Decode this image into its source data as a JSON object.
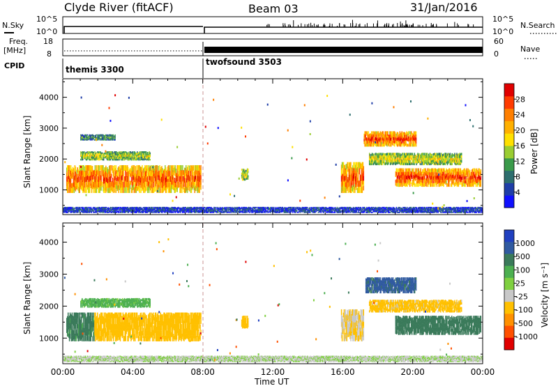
{
  "header": {
    "station": "Clyde River (fitACF)",
    "beam": "Beam 03",
    "date": "31/Jan/2016"
  },
  "strip_nsky": {
    "left_label": "N.Sky",
    "left_ticks": [
      "10^5",
      "10^0"
    ],
    "right_label": "N.Search",
    "right_ticks": [
      "10^5",
      "10^0"
    ]
  },
  "strip_freq": {
    "left_label_1": "Freq.",
    "left_label_2": "[MHz]",
    "left_ticks": [
      "18",
      "8"
    ],
    "right_label": "Nave",
    "right_ticks": [
      "60",
      "0"
    ]
  },
  "cpid": {
    "label": "CPID",
    "modes": [
      {
        "name": "themis 3300",
        "start_hour": 0
      },
      {
        "name": "twofsound 3503",
        "start_hour": 8
      }
    ]
  },
  "chart_data": [
    {
      "type": "heatmap",
      "panel": "power",
      "ylabel": "Slant Range [km]",
      "y_ticks": [
        "1000",
        "2000",
        "3000",
        "4000"
      ],
      "ylim": [
        200,
        4600
      ],
      "xlim": [
        0,
        24
      ],
      "colorbar": {
        "title": "Power [dB]",
        "ticks": [
          "4",
          "8",
          "12",
          "16",
          "20",
          "24",
          "28"
        ],
        "colors": [
          "#1010ff",
          "#1f3ea8",
          "#2d6e6e",
          "#3a9a4a",
          "#9acd32",
          "#ffe000",
          "#ffb000",
          "#ff7f00",
          "#ff3b00",
          "#e00000"
        ]
      },
      "echo_regions": [
        {
          "t0": 0.2,
          "t1": 7.9,
          "r0": 900,
          "r1": 1800,
          "level": 0.75
        },
        {
          "t0": 1.0,
          "t1": 5.0,
          "r0": 1950,
          "r1": 2250,
          "level": 0.45
        },
        {
          "t0": 1.0,
          "t1": 3.0,
          "r0": 2600,
          "r1": 2800,
          "level": 0.3
        },
        {
          "t0": 10.2,
          "t1": 10.6,
          "r0": 1300,
          "r1": 1700,
          "level": 0.5
        },
        {
          "t0": 15.9,
          "t1": 17.2,
          "r0": 900,
          "r1": 1900,
          "level": 0.75
        },
        {
          "t0": 17.2,
          "t1": 20.2,
          "r0": 2400,
          "r1": 2900,
          "level": 0.8
        },
        {
          "t0": 19.0,
          "t1": 23.9,
          "r0": 1100,
          "r1": 1700,
          "level": 0.8
        },
        {
          "t0": 17.5,
          "t1": 22.8,
          "r0": 1800,
          "r1": 2200,
          "level": 0.5
        },
        {
          "t0": 0.0,
          "t1": 24.0,
          "r0": 250,
          "r1": 450,
          "level": 0.15
        }
      ]
    },
    {
      "type": "heatmap",
      "panel": "velocity",
      "ylabel": "Slant Range [km]",
      "y_ticks": [
        "1000",
        "2000",
        "3000",
        "4000"
      ],
      "ylim": [
        200,
        4600
      ],
      "xlim": [
        0,
        24
      ],
      "xlabel": "Time UT",
      "x_ticks": [
        "00:00",
        "04:00",
        "08:00",
        "12:00",
        "16:00",
        "20:00",
        "00:00"
      ],
      "colorbar": {
        "title": "Velocity [m s⁻¹]",
        "ticks": [
          "1000",
          "500",
          "100",
          "25",
          "-25",
          "-100",
          "-500",
          "-1000"
        ],
        "colors": [
          "#2040c0",
          "#305aa0",
          "#3a7a5a",
          "#4caf50",
          "#7fd040",
          "#c8c8c8",
          "#ffc000",
          "#ff9000",
          "#ff5000",
          "#e00000"
        ]
      },
      "echo_regions": [
        {
          "t0": 0.2,
          "t1": 1.8,
          "r0": 900,
          "r1": 1800,
          "velocity": 150
        },
        {
          "t0": 1.8,
          "t1": 7.9,
          "r0": 900,
          "r1": 1800,
          "velocity": -250
        },
        {
          "t0": 1.0,
          "t1": 5.0,
          "r0": 1950,
          "r1": 2250,
          "velocity": 50
        },
        {
          "t0": 10.2,
          "t1": 10.6,
          "r0": 1300,
          "r1": 1700,
          "velocity": -250
        },
        {
          "t0": 15.9,
          "t1": 17.2,
          "r0": 900,
          "r1": 1900,
          "velocity": -100
        },
        {
          "t0": 17.3,
          "t1": 20.2,
          "r0": 2400,
          "r1": 2900,
          "velocity": 700
        },
        {
          "t0": 19.0,
          "t1": 23.9,
          "r0": 1100,
          "r1": 1700,
          "velocity": 250
        },
        {
          "t0": 17.5,
          "t1": 22.8,
          "r0": 1800,
          "r1": 2200,
          "velocity": -150
        },
        {
          "t0": 0.0,
          "t1": 24.0,
          "r0": 250,
          "r1": 450,
          "velocity": -30
        }
      ]
    }
  ]
}
